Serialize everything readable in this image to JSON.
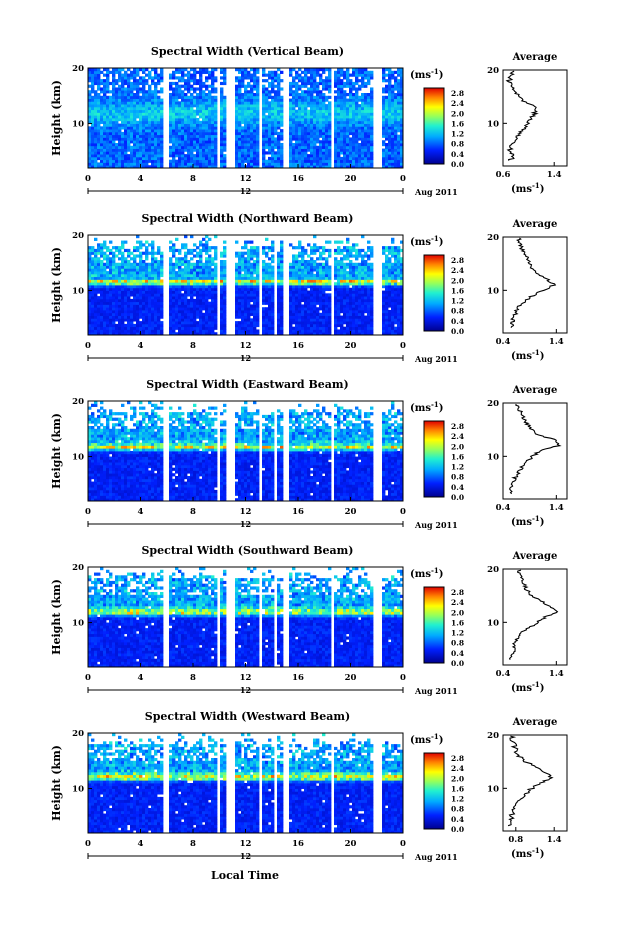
{
  "figure": {
    "x_axis_title": "Local Time",
    "date_label": "Aug 2011",
    "day_marker": "12",
    "average_title": "Average",
    "colorbar_unit": "(ms",
    "colorbar_unit_exp": "-1",
    "colorbar_unit_close": ")",
    "avg_unit": "(ms",
    "avg_unit_exp": "-1",
    "avg_unit_close": ")"
  },
  "chart_data": [
    {
      "type": "heatmap",
      "title": "Spectral Width (Vertical Beam)",
      "ylabel": "Height (km)",
      "xlabel": "Local Time",
      "x_ticks": [
        "0",
        "4",
        "8",
        "12",
        "16",
        "20",
        "0"
      ],
      "y_ticks": [
        "10",
        "20"
      ],
      "xlim": [
        0,
        24
      ],
      "ylim": [
        2,
        20
      ],
      "colorbar": {
        "label": "(ms-1)",
        "ticks": [
          "0.0",
          "0.4",
          "0.8",
          "1.2",
          "1.6",
          "2.0",
          "2.4",
          "2.8"
        ],
        "range": [
          0,
          3.0
        ]
      },
      "data_gaps_hours": [
        [
          5.8,
          6.2
        ],
        [
          9.8,
          10.0
        ],
        [
          10.5,
          11.1
        ],
        [
          13.0,
          13.2
        ],
        [
          14.8,
          15.2
        ],
        [
          18.5,
          18.8
        ],
        [
          21.8,
          22.5
        ]
      ],
      "average_profile": {
        "xlim": [
          0.6,
          1.6
        ],
        "x_ticks": [
          "0.6",
          "1.4"
        ],
        "y_ticks": [
          "10",
          "20"
        ],
        "height_km": [
          3,
          4,
          5,
          6,
          7,
          8,
          9,
          10,
          11,
          12,
          13,
          14,
          15,
          16,
          17,
          18,
          19,
          20
        ],
        "spectral_width": [
          0.72,
          0.75,
          0.7,
          0.74,
          0.8,
          0.85,
          0.95,
          1.0,
          1.05,
          1.1,
          1.12,
          0.95,
          0.85,
          0.8,
          0.75,
          0.7,
          0.72,
          0.75
        ]
      }
    },
    {
      "type": "heatmap",
      "title": "Spectral Width (Northward Beam)",
      "ylabel": "Height (km)",
      "xlabel": "Local Time",
      "x_ticks": [
        "0",
        "4",
        "8",
        "12",
        "16",
        "20",
        "0"
      ],
      "y_ticks": [
        "10",
        "20"
      ],
      "xlim": [
        0,
        24
      ],
      "ylim": [
        2,
        20
      ],
      "colorbar": {
        "label": "(ms-1)",
        "ticks": [
          "0.0",
          "0.4",
          "0.8",
          "1.2",
          "1.6",
          "2.0",
          "2.4",
          "2.8"
        ],
        "range": [
          0,
          3.0
        ]
      },
      "data_gaps_hours": [
        [
          5.8,
          6.2
        ],
        [
          9.8,
          10.0
        ],
        [
          10.5,
          11.1
        ],
        [
          13.0,
          13.2
        ],
        [
          14.2,
          14.5
        ],
        [
          14.8,
          15.2
        ],
        [
          18.5,
          18.8
        ],
        [
          21.8,
          22.5
        ]
      ],
      "average_profile": {
        "xlim": [
          0.4,
          1.6
        ],
        "x_ticks": [
          "0.4",
          "1.4"
        ],
        "y_ticks": [
          "10",
          "20"
        ],
        "height_km": [
          3,
          4,
          5,
          6,
          7,
          8,
          9,
          10,
          11,
          12,
          13,
          14,
          15,
          16,
          17,
          18,
          19,
          20
        ],
        "spectral_width": [
          0.55,
          0.58,
          0.6,
          0.65,
          0.7,
          0.8,
          0.95,
          1.15,
          1.35,
          1.25,
          1.05,
          0.95,
          0.9,
          0.85,
          0.8,
          0.75,
          0.7,
          0.72
        ]
      }
    },
    {
      "type": "heatmap",
      "title": "Spectral Width (Eastward Beam)",
      "ylabel": "Height (km)",
      "xlabel": "Local Time",
      "x_ticks": [
        "0",
        "4",
        "8",
        "12",
        "16",
        "20",
        "0"
      ],
      "y_ticks": [
        "10",
        "20"
      ],
      "xlim": [
        0,
        24
      ],
      "ylim": [
        2,
        20
      ],
      "colorbar": {
        "label": "(ms-1)",
        "ticks": [
          "0.0",
          "0.4",
          "0.8",
          "1.2",
          "1.6",
          "2.0",
          "2.4",
          "2.8"
        ],
        "range": [
          0,
          3.0
        ]
      },
      "data_gaps_hours": [
        [
          5.8,
          6.2
        ],
        [
          9.8,
          10.0
        ],
        [
          10.5,
          11.1
        ],
        [
          13.0,
          13.2
        ],
        [
          14.2,
          14.5
        ],
        [
          14.8,
          15.2
        ],
        [
          18.5,
          18.8
        ],
        [
          21.8,
          22.5
        ]
      ],
      "average_profile": {
        "xlim": [
          0.4,
          1.6
        ],
        "x_ticks": [
          "0.4",
          "1.4"
        ],
        "y_ticks": [
          "10",
          "20"
        ],
        "height_km": [
          3,
          4,
          5,
          6,
          7,
          8,
          9,
          10,
          11,
          12,
          13,
          14,
          15,
          16,
          17,
          18,
          19,
          20
        ],
        "spectral_width": [
          0.55,
          0.55,
          0.6,
          0.62,
          0.7,
          0.75,
          0.85,
          0.95,
          1.1,
          1.45,
          1.4,
          1.05,
          0.95,
          0.85,
          0.8,
          0.75,
          0.7,
          0.65
        ]
      }
    },
    {
      "type": "heatmap",
      "title": "Spectral Width (Southward Beam)",
      "ylabel": "Height (km)",
      "xlabel": "Local Time",
      "x_ticks": [
        "0",
        "4",
        "8",
        "12",
        "16",
        "20",
        "0"
      ],
      "y_ticks": [
        "10",
        "20"
      ],
      "xlim": [
        0,
        24
      ],
      "ylim": [
        2,
        20
      ],
      "colorbar": {
        "label": "(ms-1)",
        "ticks": [
          "0.0",
          "0.4",
          "0.8",
          "1.2",
          "1.6",
          "2.0",
          "2.4",
          "2.8"
        ],
        "range": [
          0,
          3.0
        ]
      },
      "data_gaps_hours": [
        [
          5.8,
          6.2
        ],
        [
          9.8,
          10.0
        ],
        [
          10.5,
          11.1
        ],
        [
          13.0,
          13.2
        ],
        [
          14.2,
          14.5
        ],
        [
          14.8,
          15.2
        ],
        [
          18.5,
          18.8
        ],
        [
          21.8,
          22.5
        ]
      ],
      "average_profile": {
        "xlim": [
          0.4,
          1.6
        ],
        "x_ticks": [
          "0.4",
          "1.4"
        ],
        "y_ticks": [
          "10",
          "20"
        ],
        "height_km": [
          3,
          4,
          5,
          6,
          7,
          8,
          9,
          10,
          11,
          12,
          13,
          14,
          15,
          16,
          17,
          18,
          19,
          20
        ],
        "spectral_width": [
          0.55,
          0.58,
          0.6,
          0.62,
          0.68,
          0.75,
          0.9,
          1.05,
          1.2,
          1.4,
          1.3,
          1.1,
          0.95,
          0.85,
          0.8,
          0.75,
          0.72,
          0.7
        ]
      }
    },
    {
      "type": "heatmap",
      "title": "Spectral Width (Westward Beam)",
      "ylabel": "Height (km)",
      "xlabel": "Local Time",
      "x_ticks": [
        "0",
        "4",
        "8",
        "12",
        "16",
        "20",
        "0"
      ],
      "y_ticks": [
        "10",
        "20"
      ],
      "xlim": [
        0,
        24
      ],
      "ylim": [
        2,
        20
      ],
      "colorbar": {
        "label": "(ms-1)",
        "ticks": [
          "0.0",
          "0.4",
          "0.8",
          "1.2",
          "1.6",
          "2.0",
          "2.4",
          "2.8"
        ],
        "range": [
          0,
          3.0
        ]
      },
      "data_gaps_hours": [
        [
          5.8,
          6.2
        ],
        [
          9.8,
          10.0
        ],
        [
          10.5,
          11.1
        ],
        [
          13.0,
          13.2
        ],
        [
          14.2,
          14.5
        ],
        [
          14.8,
          15.2
        ],
        [
          18.5,
          18.8
        ],
        [
          21.8,
          22.5
        ]
      ],
      "average_profile": {
        "xlim": [
          0.6,
          1.6
        ],
        "x_ticks": [
          "0.8",
          "1.4"
        ],
        "y_ticks": [
          "10",
          "20"
        ],
        "height_km": [
          3,
          4,
          5,
          6,
          7,
          8,
          9,
          10,
          11,
          12,
          13,
          14,
          15,
          16,
          17,
          18,
          19,
          20
        ],
        "spectral_width": [
          0.7,
          0.72,
          0.74,
          0.76,
          0.8,
          0.85,
          0.95,
          1.05,
          1.2,
          1.35,
          1.25,
          1.1,
          0.95,
          0.85,
          0.8,
          0.78,
          0.75,
          0.74
        ]
      }
    }
  ]
}
